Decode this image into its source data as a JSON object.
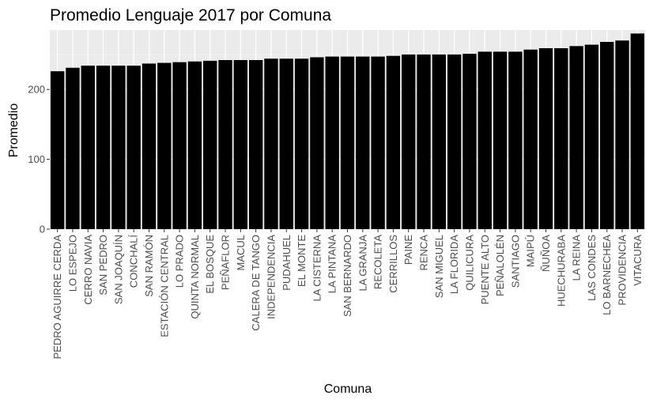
{
  "chart_data": {
    "type": "bar",
    "title": "Promedio Lenguaje 2017 por Comuna",
    "xlabel": "Comuna",
    "ylabel": "Promedio",
    "ylim": [
      0,
      285
    ],
    "yticks": [
      0,
      100,
      200
    ],
    "grid": true,
    "bar_color": "#000000",
    "panel_color": "#ebebeb",
    "grid_major_color": "#ffffff",
    "categories": [
      "PEDRO AGUIRRE CERDA",
      "LO ESPEJO",
      "CERRO NAVIA",
      "SAN PEDRO",
      "SAN JOAQUÍN",
      "CONCHALÍ",
      "SAN RAMÓN",
      "ESTACIÓN CENTRAL",
      "LO PRADO",
      "QUINTA NORMAL",
      "EL BOSQUE",
      "PEÑAFLOR",
      "MACUL",
      "CALERA DE TANGO",
      "INDEPENDENCIA",
      "PUDAHUEL",
      "EL MONTE",
      "LA CISTERNA",
      "LA PINTANA",
      "SAN BERNARDO",
      "LA GRANJA",
      "RECOLETA",
      "CERRILLOS",
      "PAINE",
      "RENCA",
      "SAN MIGUEL",
      "LA FLORIDA",
      "QUILICURA",
      "PUENTE ALTO",
      "PEÑALOLÉN",
      "SANTIAGO",
      "MAIPÚ",
      "ÑUÑOA",
      "HUECHURABA",
      "LA REINA",
      "LAS CONDES",
      "LO BARNECHEA",
      "PROVIDENCIA",
      "VITACURA"
    ],
    "values": [
      226,
      231,
      234,
      234,
      234,
      234,
      237,
      238,
      239,
      240,
      241,
      242,
      242,
      242,
      244,
      244,
      244,
      246,
      247,
      247,
      247,
      247,
      248,
      250,
      250,
      250,
      250,
      251,
      254,
      254,
      254,
      257,
      259,
      259,
      262,
      264,
      268,
      270,
      280
    ]
  }
}
